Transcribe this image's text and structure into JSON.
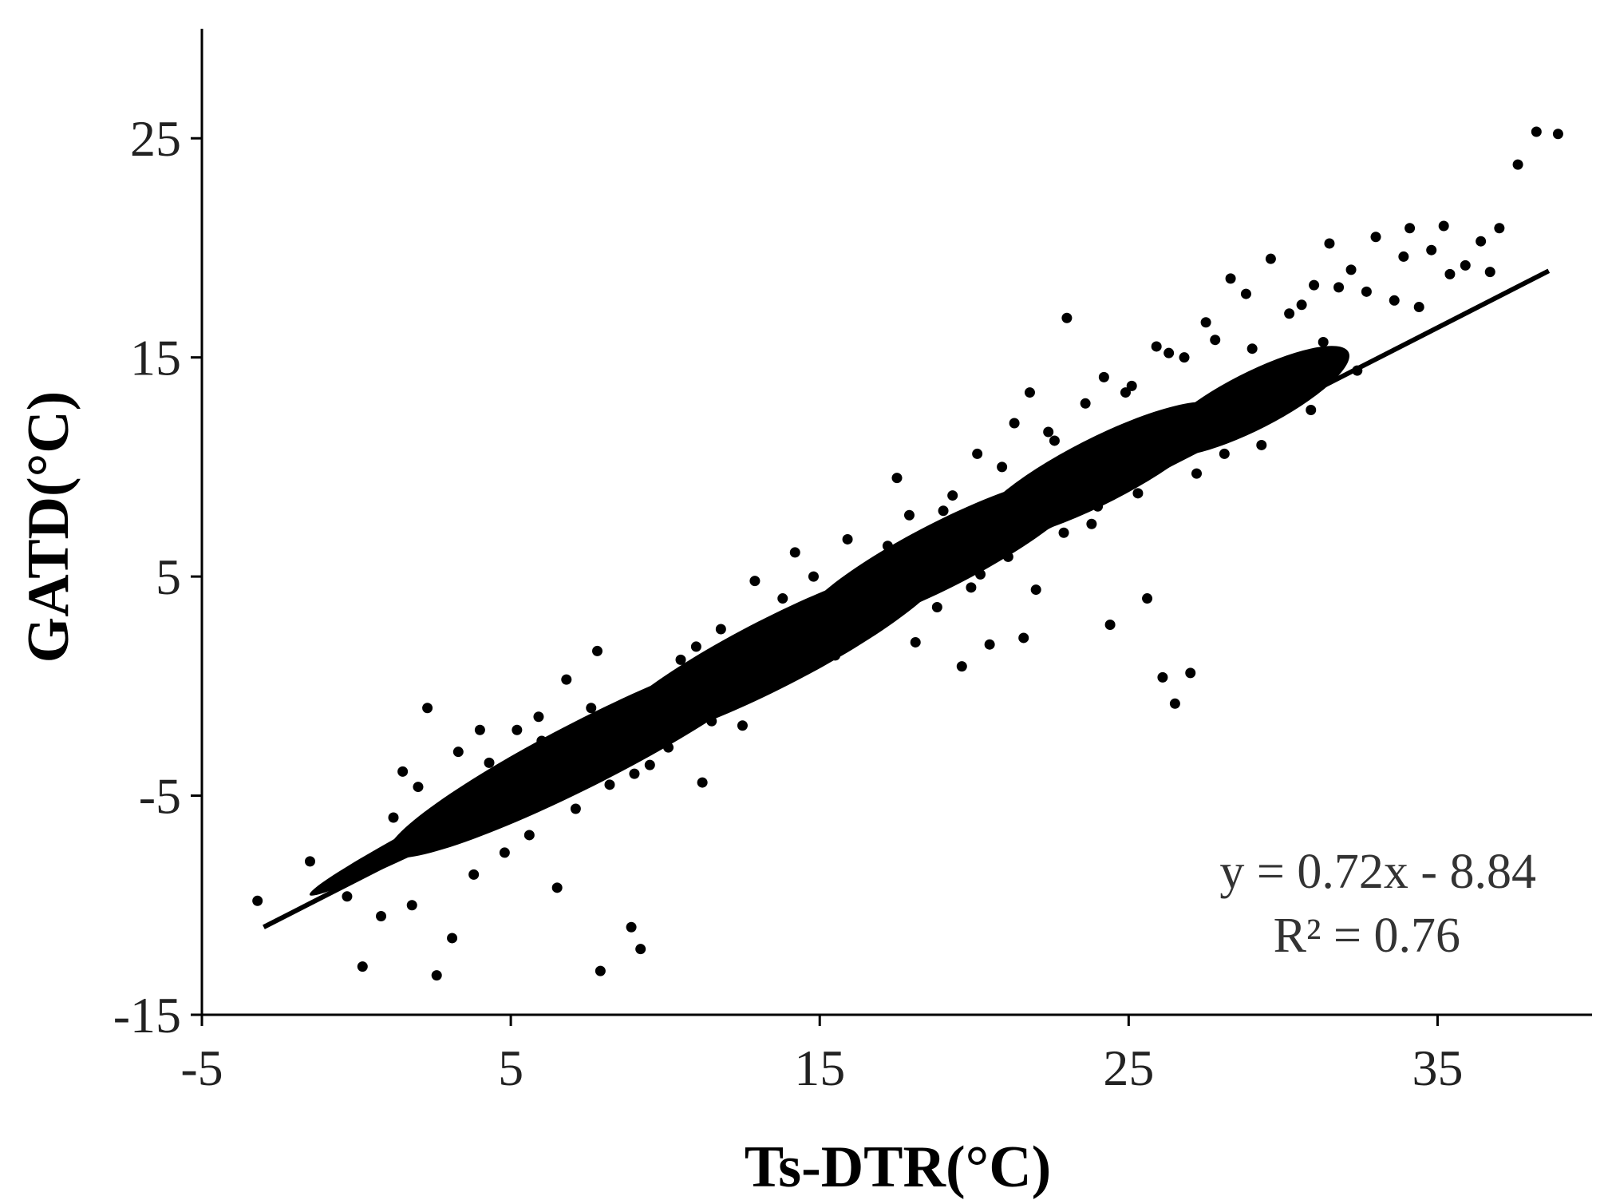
{
  "chart_data": {
    "type": "scatter",
    "title": "",
    "xlabel": "Ts-DTR(°C)",
    "ylabel": "GATD(°C)",
    "xlim": [
      -5,
      40
    ],
    "ylim": [
      -15,
      30
    ],
    "xticks": [
      -5,
      5,
      15,
      25,
      35
    ],
    "yticks": [
      -15,
      -5,
      5,
      15,
      25
    ],
    "grid": false,
    "legend": "none",
    "marker_color": "#000000",
    "series": [
      {
        "kind": "points",
        "x": [
          -3.2,
          -1.5,
          -0.3,
          0.2,
          1.8,
          2.6,
          3.1,
          7.9,
          9.2,
          8.9,
          0.8,
          1.2,
          2.0,
          3.3,
          4.0,
          2.3,
          1.5,
          6.5,
          6.0,
          11.2,
          10.5,
          13.1,
          13.8,
          14.2,
          16.1,
          17.5,
          18.4,
          19.0,
          20.1,
          21.3,
          21.8,
          22.6,
          23.0,
          24.2,
          25.1,
          25.9,
          26.8,
          27.5,
          28.3,
          28.8,
          29.6,
          30.2,
          31.0,
          31.5,
          32.2,
          33.0,
          33.6,
          34.1,
          34.8,
          35.2,
          35.9,
          36.4,
          37.0,
          37.6,
          38.2,
          38.9,
          27.0,
          26.1,
          26.5,
          24.4,
          25.6,
          23.8,
          22.0,
          21.6,
          20.5,
          19.6,
          18.8,
          17.2,
          15.5,
          16.8,
          12.5,
          10.1,
          9.5,
          8.2,
          7.1,
          5.6,
          4.8,
          3.8,
          2.8,
          5.2,
          6.8,
          7.8,
          9.9,
          11.8,
          12.9,
          14.8,
          15.9,
          17.9,
          19.3,
          20.9,
          22.4,
          23.6,
          24.9,
          26.3,
          27.8,
          29.0,
          30.6,
          31.8,
          32.7,
          33.9,
          35.4,
          13.3,
          11.5,
          16.3,
          18.1,
          20.2,
          21.1,
          9.0,
          7.4,
          6.2,
          4.3,
          3.5,
          10.8,
          14.6,
          19.9,
          25.3,
          28.1,
          30.9,
          32.4,
          29.3,
          27.2,
          24.0,
          22.9,
          20.8,
          17.6,
          15.1,
          12.2,
          8.6,
          6.6,
          4.6,
          5.9,
          7.6,
          9.6,
          11.0,
          13.6,
          16.6,
          18.6,
          21.9,
          23.3,
          25.7,
          28.6,
          31.3,
          34.4,
          36.7
        ],
        "y": [
          -9.8,
          -8.0,
          -9.6,
          -12.8,
          -10.0,
          -13.2,
          -11.5,
          -13.0,
          -12.0,
          -11.0,
          -10.5,
          -6.0,
          -4.6,
          -3.0,
          -2.0,
          -1.0,
          -3.9,
          -9.2,
          -2.5,
          -4.4,
          1.2,
          2.4,
          4.0,
          6.1,
          3.8,
          9.5,
          6.2,
          8.0,
          10.6,
          12.0,
          13.4,
          11.2,
          16.8,
          14.1,
          13.7,
          15.5,
          15.0,
          16.6,
          18.6,
          17.9,
          19.5,
          17.0,
          18.3,
          20.2,
          19.0,
          20.5,
          17.6,
          20.9,
          19.9,
          21.0,
          19.2,
          20.3,
          20.9,
          23.8,
          25.3,
          25.2,
          0.6,
          0.4,
          -0.8,
          2.8,
          4.0,
          7.4,
          4.4,
          2.2,
          1.9,
          0.9,
          3.6,
          6.4,
          1.4,
          4.8,
          -1.8,
          -2.8,
          -3.6,
          -4.5,
          -5.6,
          -6.8,
          -7.6,
          -8.6,
          -6.4,
          -2.0,
          0.3,
          1.6,
          -0.4,
          2.6,
          4.8,
          5.0,
          6.7,
          7.8,
          8.7,
          10.0,
          11.6,
          12.9,
          13.4,
          15.2,
          15.8,
          15.4,
          17.4,
          18.2,
          18.0,
          19.6,
          18.8,
          0.1,
          -1.6,
          3.2,
          2.0,
          5.1,
          5.9,
          -4.0,
          -3.0,
          -5.2,
          -3.5,
          -6.0,
          -0.8,
          1.0,
          4.5,
          8.8,
          10.6,
          12.6,
          14.4,
          11.0,
          9.7,
          8.2,
          7.0,
          6.9,
          4.2,
          2.6,
          0.9,
          -2.2,
          -3.9,
          -4.9,
          -1.4,
          -1.0,
          -0.6,
          1.8,
          2.9,
          5.5,
          5.8,
          8.6,
          9.4,
          11.8,
          13.3,
          15.7,
          17.3,
          18.9
        ]
      },
      {
        "kind": "fit_line",
        "x": [
          -3.0,
          38.6
        ],
        "y": [
          -11.0,
          18.95
        ]
      }
    ],
    "annotations": [
      "y = 0.72x - 8.84",
      "R² = 0.76"
    ]
  }
}
